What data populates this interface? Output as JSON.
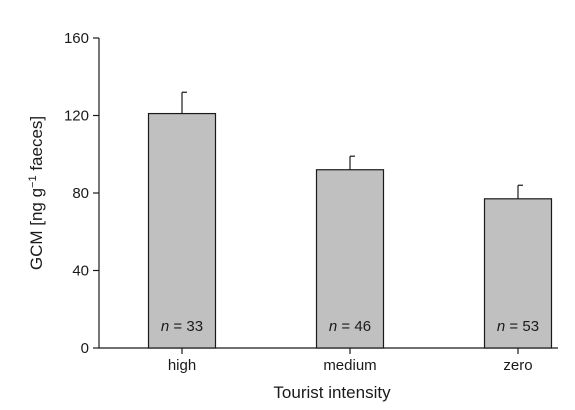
{
  "chart_data": {
    "type": "bar",
    "categories": [
      "high",
      "medium",
      "zero"
    ],
    "values": [
      121,
      92,
      77
    ],
    "error_upper": [
      132,
      99,
      84
    ],
    "sample_sizes": [
      "33",
      "46",
      "53"
    ],
    "n_symbol": "n",
    "n_sep": " = ",
    "xlabel": "Tourist intensity",
    "ylabel_main": "GCM [ng g",
    "ylabel_sup": "−1",
    "ylabel_tail": " faeces]",
    "ylim": [
      0,
      160
    ],
    "yticks": [
      0,
      40,
      80,
      120,
      160
    ],
    "grid": false,
    "colors": {
      "bar_fill": "#c0c0c0",
      "stroke": "#1a1a1a"
    }
  }
}
